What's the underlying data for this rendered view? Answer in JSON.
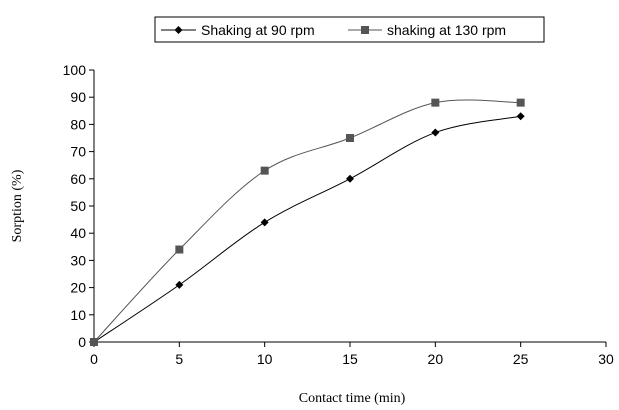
{
  "chart_data": {
    "type": "line",
    "title": "",
    "xlabel": "Contact time (min)",
    "ylabel": "Sorption (%)",
    "xlim": [
      0,
      30
    ],
    "ylim": [
      0,
      100
    ],
    "xticks": [
      0,
      5,
      10,
      15,
      20,
      25,
      30
    ],
    "yticks": [
      0,
      10,
      20,
      30,
      40,
      50,
      60,
      70,
      80,
      90,
      100
    ],
    "grid": false,
    "legend_position": "top-center",
    "series": [
      {
        "name": "Shaking at 90 rpm",
        "marker": "diamond",
        "color": "#000000",
        "x": [
          0,
          5,
          10,
          15,
          20,
          25
        ],
        "values": [
          0,
          21,
          44,
          60,
          77,
          83
        ]
      },
      {
        "name": "shaking at 130 rpm",
        "marker": "square",
        "color": "#555555",
        "x": [
          0,
          5,
          10,
          15,
          20,
          25
        ],
        "values": [
          0,
          34,
          63,
          75,
          88,
          88
        ]
      }
    ]
  }
}
